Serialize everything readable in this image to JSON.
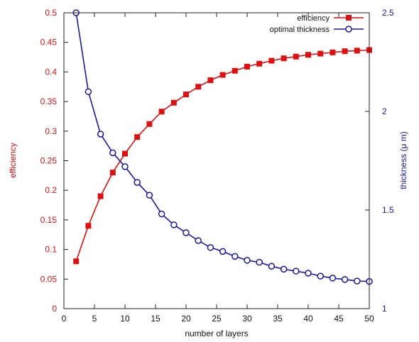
{
  "chart_data": {
    "type": "line",
    "xlabel": "number of layers",
    "ylabel_left": "efficiency",
    "ylabel_right": "thickness (μ m)",
    "xlim": [
      0,
      50
    ],
    "ylim_left": [
      0,
      0.5
    ],
    "ylim_right": [
      1,
      2.5
    ],
    "x_ticks": [
      0,
      5,
      10,
      15,
      20,
      25,
      30,
      35,
      40,
      45,
      50
    ],
    "y_left_ticks": [
      0,
      0.05,
      0.1,
      0.15,
      0.2,
      0.25,
      0.3,
      0.35,
      0.4,
      0.45,
      0.5
    ],
    "y_right_ticks": [
      1,
      1.5,
      2,
      2.5
    ],
    "grid": false,
    "legend_position": "top-right",
    "x": [
      2,
      4,
      6,
      8,
      10,
      12,
      14,
      16,
      18,
      20,
      22,
      24,
      26,
      28,
      30,
      32,
      34,
      36,
      38,
      40,
      42,
      44,
      46,
      48,
      50
    ],
    "series": [
      {
        "name": "efficiency",
        "axis": "left",
        "color": "#dd1111",
        "marker": "filled-square",
        "values": [
          0.08,
          0.14,
          0.19,
          0.23,
          0.262,
          0.29,
          0.312,
          0.333,
          0.348,
          0.362,
          0.375,
          0.386,
          0.395,
          0.402,
          0.409,
          0.414,
          0.419,
          0.423,
          0.426,
          0.429,
          0.431,
          0.433,
          0.435,
          0.436,
          0.437
        ]
      },
      {
        "name": "optimal thickness",
        "axis": "right",
        "color": "#1a1a99",
        "marker": "open-circle",
        "values": [
          2.5,
          2.1,
          1.885,
          1.79,
          1.72,
          1.64,
          1.575,
          1.48,
          1.425,
          1.385,
          1.345,
          1.31,
          1.29,
          1.265,
          1.245,
          1.235,
          1.215,
          1.2,
          1.19,
          1.18,
          1.165,
          1.155,
          1.148,
          1.14,
          1.138
        ]
      }
    ],
    "colors": {
      "left_axis": "#dd1111",
      "right_axis": "#1a1a99",
      "bottom_axis": "#111111"
    }
  }
}
